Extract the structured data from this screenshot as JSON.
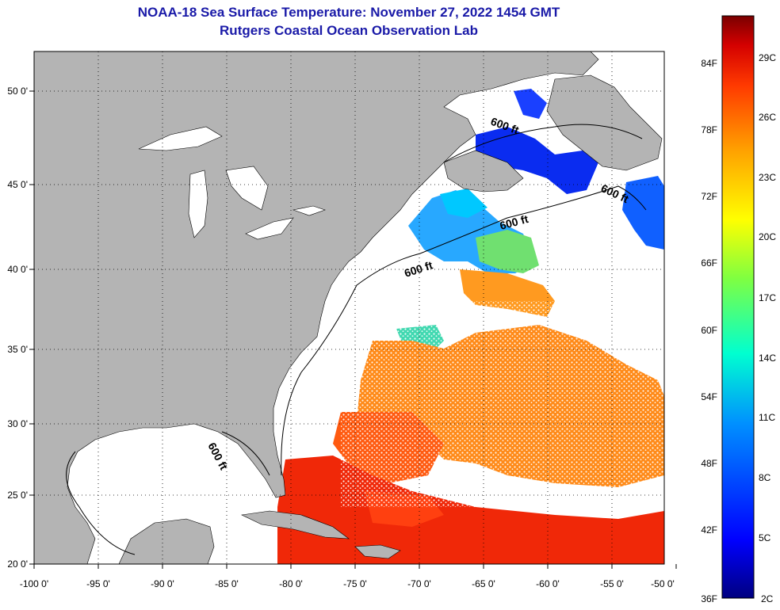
{
  "title": {
    "line1": "NOAA-18 Sea Surface Temperature:  November 27, 2022 1454 GMT",
    "line2": "Rutgers Coastal Ocean Observation Lab"
  },
  "map": {
    "x_ticks": [
      "-100 0'",
      "-95 0'",
      "-90 0'",
      "-85 0'",
      "-80 0'",
      "-75 0'",
      "-70 0'",
      "-65 0'",
      "-60 0'",
      "-55 0'",
      "-50 0'"
    ],
    "y_ticks": [
      "50 0'",
      "45 0'",
      "40 0'",
      "35 0'",
      "30 0'",
      "25 0'",
      "20 0'"
    ],
    "contour_labels": [
      "600 ft",
      "600 ft",
      "600 ft",
      "600 ft",
      "600 ft"
    ],
    "colors": {
      "land": "#b4b4b4",
      "ocean_nodata": "#ffffff",
      "grid": "#000000"
    }
  },
  "colorbar": {
    "fahrenheit": [
      "84F",
      "78F",
      "72F",
      "66F",
      "60F",
      "54F",
      "48F",
      "42F",
      "36F"
    ],
    "celsius": [
      "29C",
      "26C",
      "23C",
      "20C",
      "17C",
      "14C",
      "11C",
      "8C",
      "5C",
      "2C"
    ],
    "colors": [
      "#7a0000",
      "#d40000",
      "#ff5a00",
      "#ffa000",
      "#ffff00",
      "#80ff40",
      "#00ffd0",
      "#0090ff",
      "#0020ff",
      "#000080"
    ]
  }
}
